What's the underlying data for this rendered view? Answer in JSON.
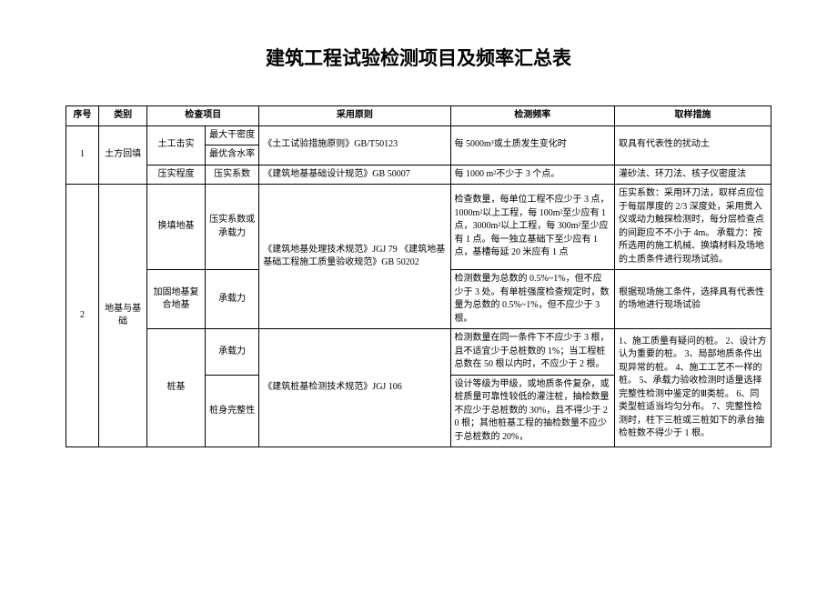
{
  "title": "建筑工程试验检测项目及频率汇总表",
  "columns": {
    "seq": "序号",
    "cat": "类别",
    "chk": "检查项目",
    "std": "采用原则",
    "freq": "检测频率",
    "samp": "取样措施"
  },
  "rows": {
    "r1": {
      "seq": "1",
      "cat": "土方回填",
      "chk1": "土工击实",
      "chk2a": "最大干密度",
      "chk2b": "最优含水率",
      "std1": "《土工试验措施原则》GB/T50123",
      "freq1": "每 5000m³或土质发生变化时",
      "samp1": "取具有代表性的扰动土",
      "chk3": "压实程度",
      "chk3b": "压实系数",
      "std2": "《建筑地基基础设计规范》GB 50007",
      "freq2": "每 1000 m²不少于 3 个点。",
      "samp2": "灌砂法、环刀法、核子仪密度法"
    },
    "r2": {
      "seq": "2",
      "cat": "地基与基础",
      "chk_a": "换填地基",
      "chk_a2": "压实系数或承载力",
      "std_ab": "《建筑地基处理技术规范》JGJ 79\n《建筑地基基础工程施工质量验收规范》GB 50202",
      "freq_a": "检查数量，每单位工程不应少于 3 点，1000m²以上工程，每 100m²至少应有 1 点，3000m²以上工程，每 300m²至少应有 1 点。每一独立基础下至少应有 1 点，基槽每延 20 米应有 1 点",
      "samp_a": "压实系数：采用环刀法，取样点应位于每层厚度的 2/3 深度处，采用贯入仪或动力触探检测时，每分层检查点的间距应不不小于 4m。\n承载力：按所选用的施工机械、换填材料及场地的土质条件进行现场试验。",
      "chk_b": "加固地基复合地基",
      "chk_b2": "承载力",
      "freq_b": "检测数量为总数的 0.5%~1%，但不应少于 3 处。有单桩强度检查规定时，数量为总数的 0.5%~1%，但不应少于 3 根。",
      "samp_b": "根据现场施工条件，选择具有代表性的场地进行现场试验",
      "chk_c": "桩基",
      "chk_c2a": "承载力",
      "std_c": "《建筑桩基检测技术规范》JGJ 106",
      "freq_c1": "检测数量在同一条件下不应少于 3 根，且不适宜少于总桩数的 1%；当工程桩总数在 50 根以内时，不应少于 2 根。",
      "samp_c": "1、施工质量有疑问的桩。\n2、设计方认为重要的桩。\n3、局部地质条件出现异常的桩。\n4、施工工艺不一样的桩。\n5、承载力验收检测时适量选择完整性检测中鉴定的Ⅲ类桩。\n6、同类型桩适当均匀分布。\n7、完整性检测时，柱下三桩或三桩如下的承台抽检桩数不得少于 1 根。",
      "chk_c2b": "桩身完整性",
      "freq_c2": "设计等级为甲级，或地质条件复杂，或桩质量可靠性较低的灌注桩，抽检数量不应少于总桩数的 30%，且不得少于 20 根；其他桩基工程的抽检数量不应少于总桩数的 20%，"
    }
  }
}
